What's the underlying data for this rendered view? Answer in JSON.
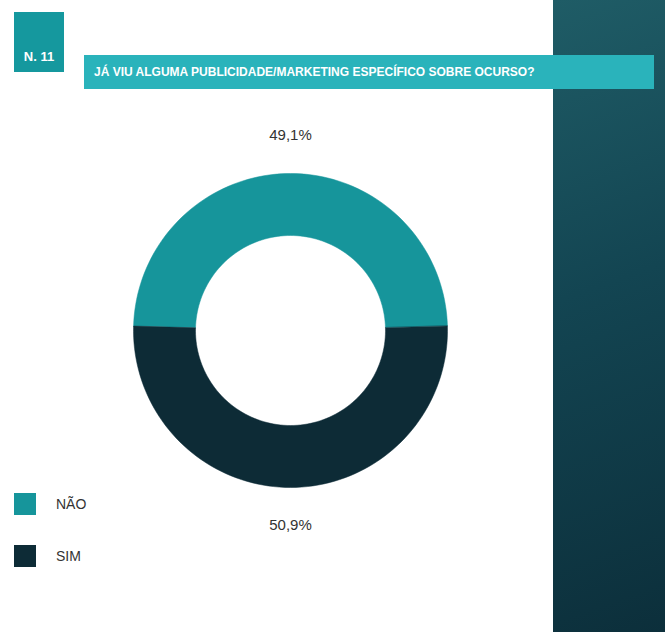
{
  "chart_data": {
    "type": "donut",
    "title": "JÁ VIU ALGUMA PUBLICIDADE/MARKETING ESPECÍFICO SOBRE OCURSO?",
    "annotations": [
      "N. 11"
    ],
    "categories": [
      "NÃO",
      "SIM"
    ],
    "values": [
      49.1,
      50.9
    ],
    "value_labels": [
      "49,1%",
      "50,9%"
    ],
    "colors": [
      "#16959b",
      "#0d2b36"
    ],
    "data_labels": true,
    "legend": "bottom-left"
  }
}
